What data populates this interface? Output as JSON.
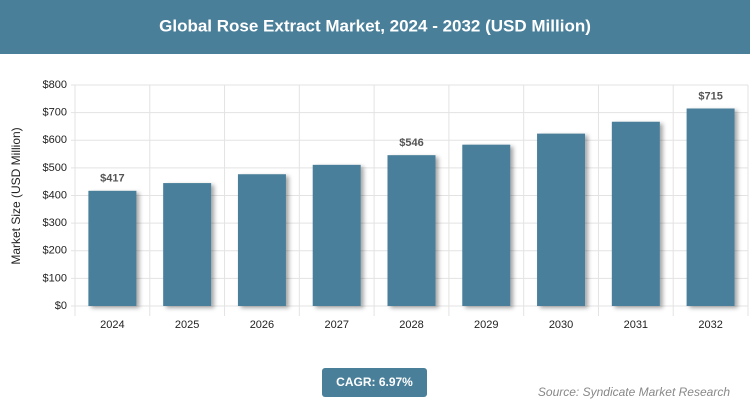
{
  "chart_data": {
    "type": "bar",
    "title": "Global Rose Extract Market, 2024 - 2032 (USD Million)",
    "y_label": "Market Size (USD Million)",
    "categories": [
      "2024",
      "2025",
      "2026",
      "2027",
      "2028",
      "2029",
      "2030",
      "2031",
      "2032"
    ],
    "values": [
      417,
      445,
      477,
      511,
      546,
      584,
      624,
      667,
      715
    ],
    "value_labels": [
      "$417",
      null,
      null,
      null,
      "$546",
      null,
      null,
      null,
      "$715"
    ],
    "color": "#4a7f9a",
    "ylim": [
      0,
      800
    ],
    "yticks": [
      {
        "value": 0,
        "label": "$0"
      },
      {
        "value": 100,
        "label": "$100"
      },
      {
        "value": 200,
        "label": "$200"
      },
      {
        "value": 300,
        "label": "$300"
      },
      {
        "value": 400,
        "label": "$400"
      },
      {
        "value": 500,
        "label": "$500"
      },
      {
        "value": 600,
        "label": "$600"
      },
      {
        "value": 700,
        "label": "$700"
      },
      {
        "value": 800,
        "label": "$800"
      }
    ],
    "grid": true,
    "cagr_label": "CAGR: 6.97%",
    "source": "Source: Syndicate Market Research"
  }
}
